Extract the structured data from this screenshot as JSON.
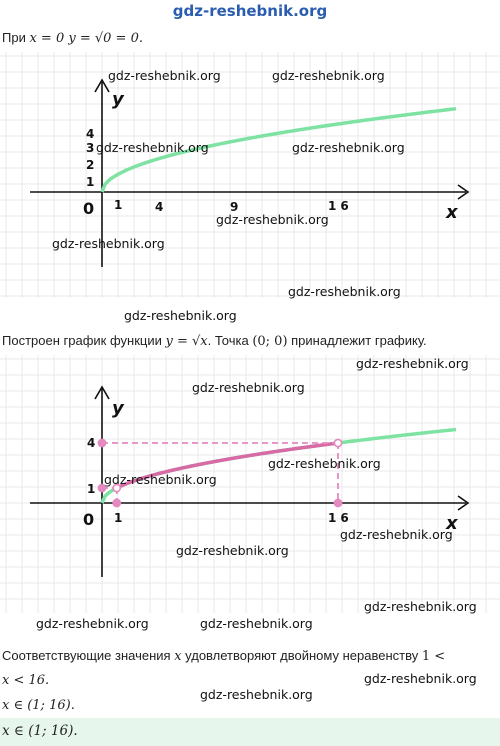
{
  "header": {
    "site": "gdz-reshebnik.org"
  },
  "line1": {
    "prefix": "При",
    "expr": "x = 0 y = √0 = 0."
  },
  "graph1": {
    "y_label": "y",
    "x_label": "x",
    "origin": "0",
    "x_ticks": [
      "1",
      "4",
      "9",
      "16"
    ],
    "y_ticks": [
      "1",
      "2",
      "3",
      "4"
    ],
    "curve_color": "#7ee2a3"
  },
  "line2": {
    "text1": "Построен график функции",
    "expr1": "y = √x",
    "text2": ". Точка",
    "expr2": "(0;  0)",
    "text3": "принадлежит графику."
  },
  "graph2": {
    "y_label": "y",
    "x_label": "x",
    "origin": "0",
    "x_ticks": [
      "1",
      "16"
    ],
    "y_ticks": [
      "1",
      "4"
    ],
    "curve_color": "#7ee2a3",
    "highlight_color": "#d86aa6",
    "dash_color": "#e58ac0"
  },
  "line3": {
    "text1": "Соответствующие значения",
    "var": "x",
    "text2": "удовлетворяют двойному неравенству",
    "expr_a": "1  <",
    "expr_b": "x  <  16."
  },
  "line4": {
    "expr": "x ∈ (1;  16)."
  },
  "answer": {
    "expr": "x ∈ (1;  16)."
  },
  "chart_data": [
    {
      "type": "line",
      "series": [
        {
          "name": "",
          "x": [
            0,
            1,
            4,
            9,
            16,
            25
          ],
          "y": [
            0,
            1,
            2,
            3,
            4,
            5
          ]
        }
      ],
      "xlabel": "x",
      "ylabel": "y",
      "x_ticks": [
        1,
        4,
        9,
        16
      ],
      "y_ticks": [
        1,
        2,
        3,
        4
      ]
    },
    {
      "type": "line",
      "series": [
        {
          "name": "",
          "x": [
            0,
            1,
            4,
            9,
            16,
            25
          ],
          "y": [
            0,
            1,
            2,
            3,
            4,
            5
          ]
        }
      ],
      "highlight": {
        "x": [
          1,
          16
        ],
        "y": [
          1,
          4
        ]
      },
      "xlabel": "x",
      "ylabel": "y",
      "x_ticks": [
        1,
        16
      ],
      "y_ticks": [
        1,
        4
      ]
    }
  ],
  "watermarks": [
    "gdz-reshebnik.org",
    "gdz-reshebnik.org",
    "gdz-reshebnik.org",
    "gdz-reshebnik.org",
    "gdz-reshebnik.org",
    "gdz-reshebnik.org",
    "gdz-reshebnik.org",
    "gdz-reshebnik.org",
    "gdz-reshebnik.org",
    "gdz-reshebnik.org",
    "gdz-reshebnik.org",
    "gdz-reshebnik.org",
    "gdz-reshebnik.org",
    "gdz-reshebnik.org",
    "gdz-reshebnik.org",
    "gdz-reshebnik.org",
    "gdz-reshebnik.org",
    "gdz-reshebnik.org"
  ]
}
